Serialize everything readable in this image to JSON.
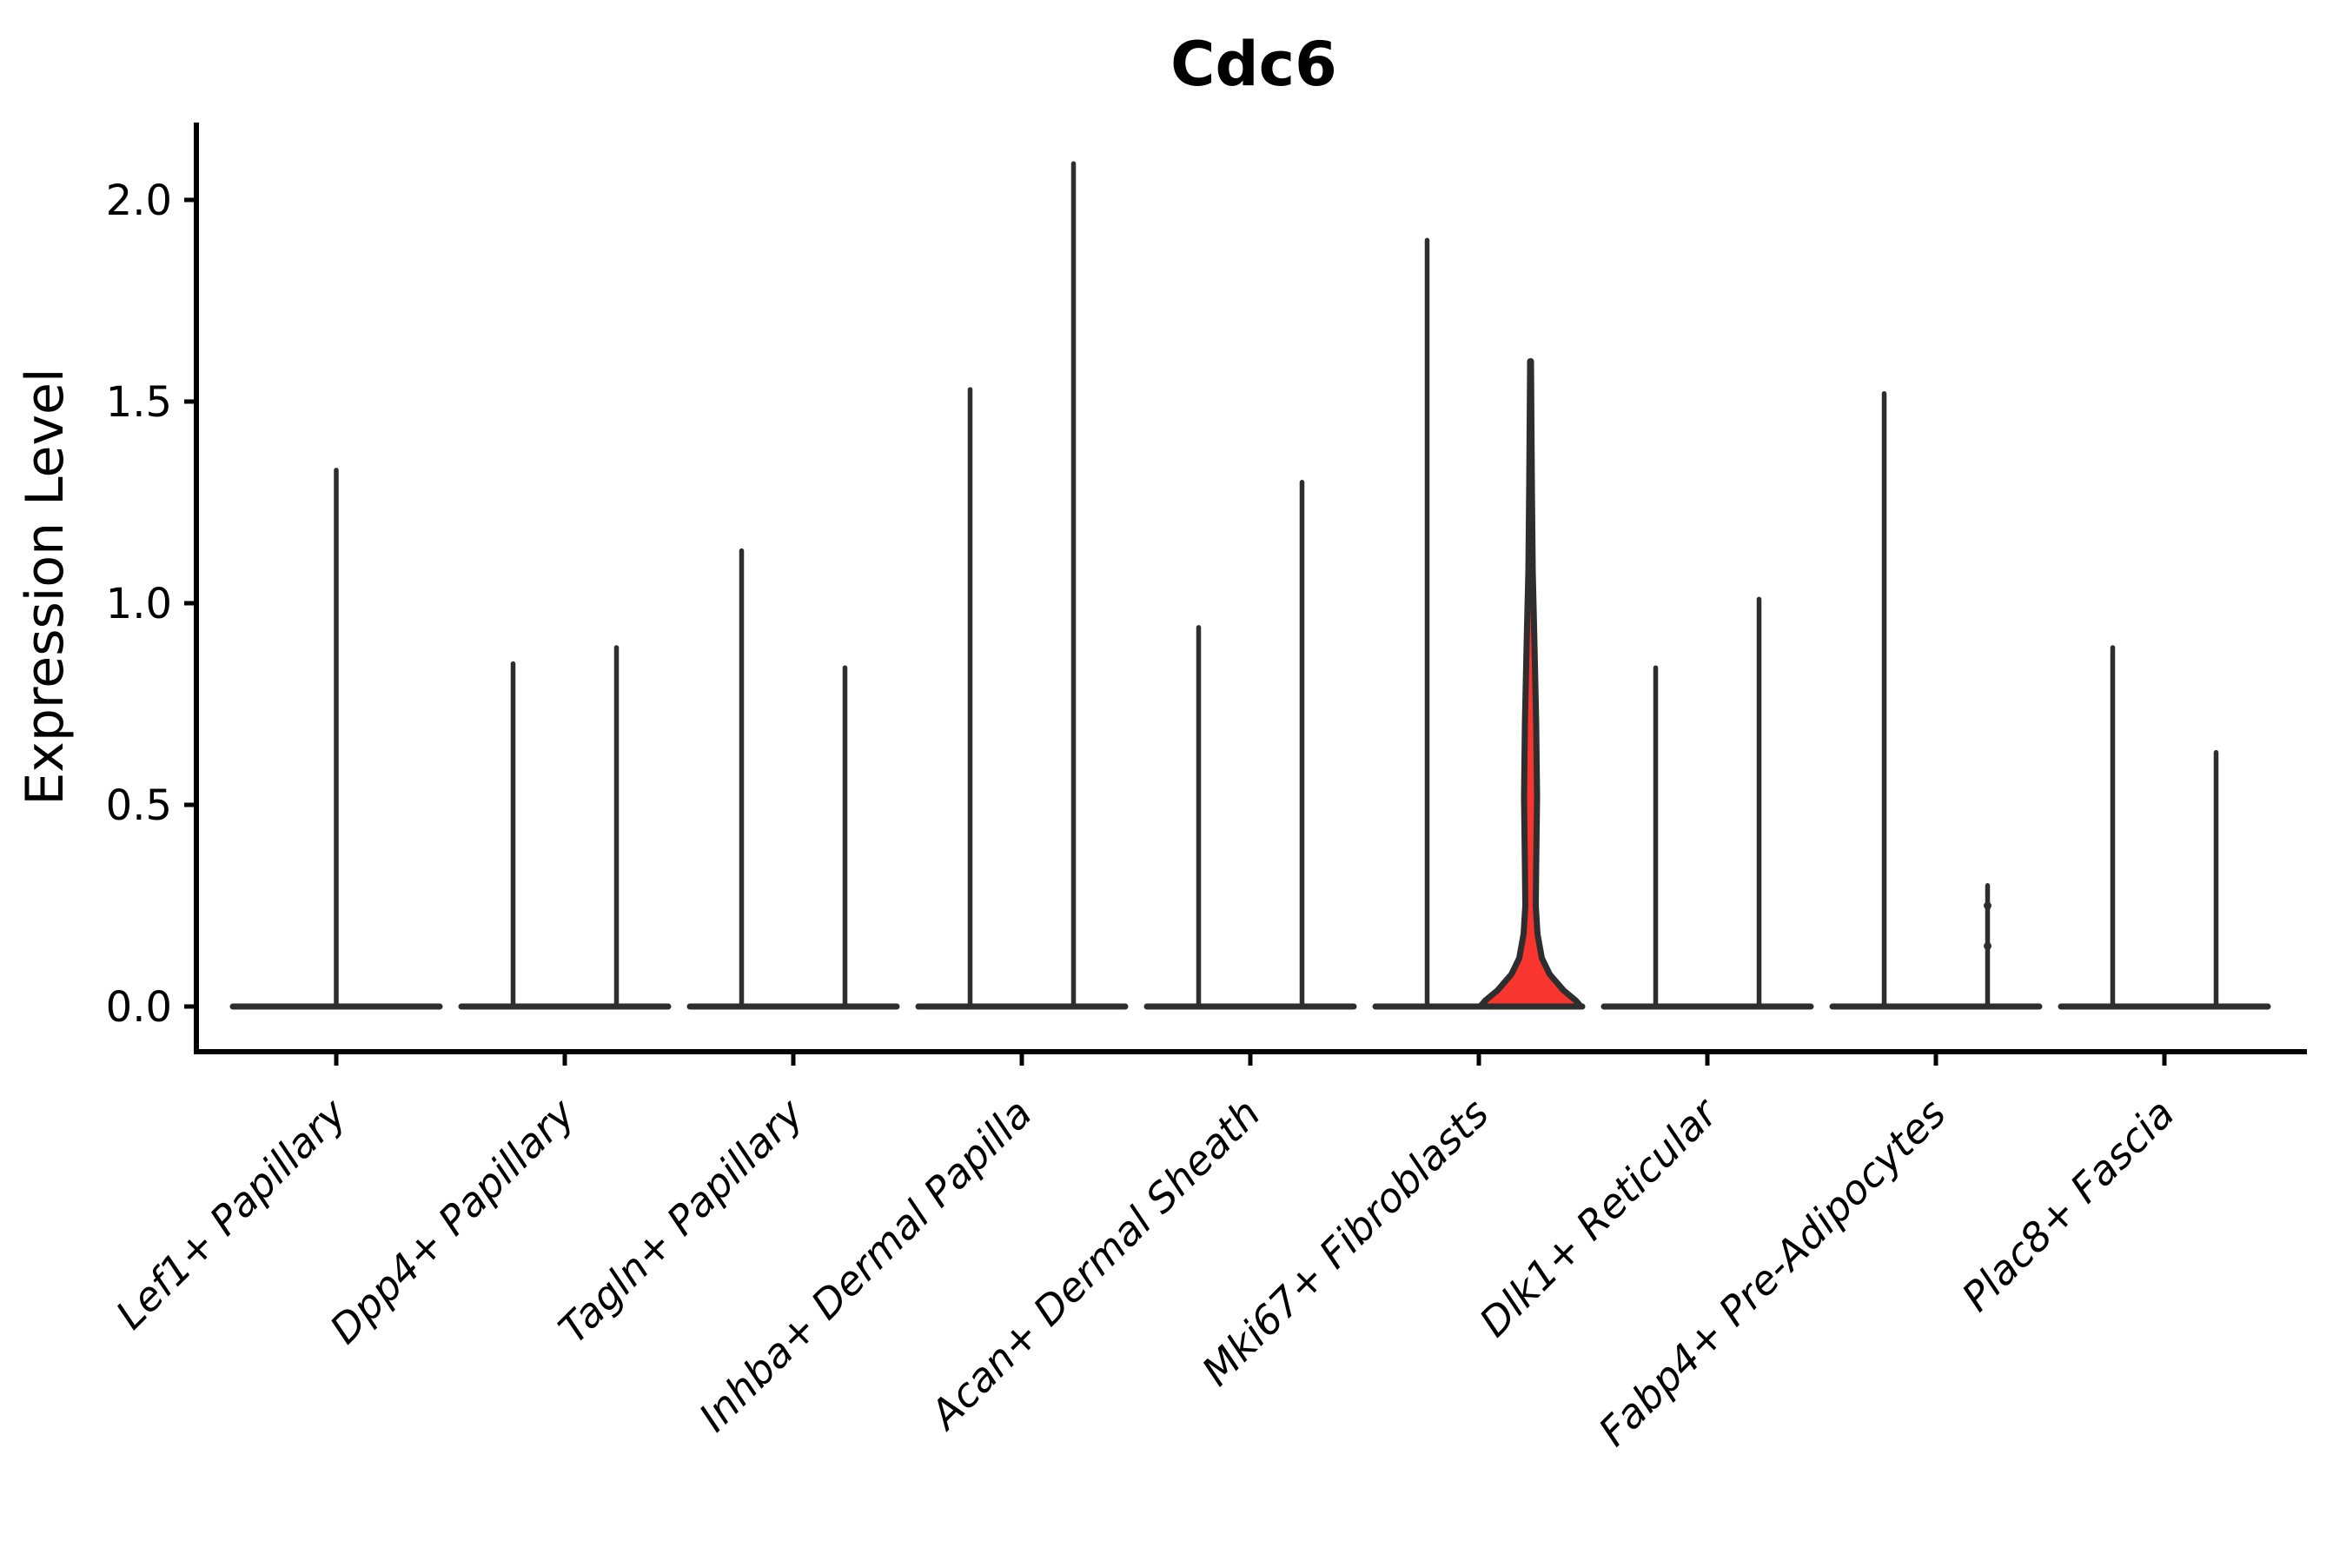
{
  "figure": {
    "title": "Cdc6",
    "ylabel": "Expression Level"
  },
  "chart_data": {
    "type": "violin",
    "title": "Cdc6",
    "xlabel": "",
    "ylabel": "Expression Level",
    "ylim": [
      0,
      2.19
    ],
    "yticks": [
      0.0,
      0.5,
      1.0,
      1.5,
      2.0
    ],
    "ytick_labels": [
      "0.0",
      "0.5",
      "1.0",
      "1.5",
      "2.0"
    ],
    "grid": false,
    "legend": "none",
    "categories": [
      "Lef1+ Papillary",
      "Dpp4+ Papillary",
      "Tagln+ Papillary",
      "Inhba+ Dermal Papilla",
      "Acan+ Dermal Sheath",
      "Mki67+ Fibroblasts",
      "Dlk1+ Reticular",
      "Fabp4+ Pre-Adipocytes",
      "Plac8+ Fascia"
    ],
    "violins": [
      {
        "category_index": 0,
        "offset": 0,
        "max": 1.33,
        "filled": false
      },
      {
        "category_index": 1,
        "offset": -1,
        "max": 0.85,
        "filled": false
      },
      {
        "category_index": 1,
        "offset": 1,
        "max": 0.89,
        "filled": false
      },
      {
        "category_index": 2,
        "offset": -1,
        "max": 1.13,
        "filled": false
      },
      {
        "category_index": 2,
        "offset": 1,
        "max": 0.84,
        "filled": false
      },
      {
        "category_index": 3,
        "offset": -1,
        "max": 1.53,
        "filled": false
      },
      {
        "category_index": 3,
        "offset": 1,
        "max": 2.09,
        "filled": false
      },
      {
        "category_index": 4,
        "offset": -1,
        "max": 0.94,
        "filled": false
      },
      {
        "category_index": 4,
        "offset": 1,
        "max": 1.3,
        "filled": false
      },
      {
        "category_index": 5,
        "offset": -1,
        "max": 1.9,
        "filled": false
      },
      {
        "category_index": 5,
        "offset": 1,
        "max": 1.6,
        "filled": true,
        "fill_color": "#f8352e",
        "profile": [
          [
            1.6,
            0.5
          ],
          [
            1.45,
            1.0
          ],
          [
            1.3,
            1.5
          ],
          [
            1.08,
            2.5
          ],
          [
            0.9,
            4.5
          ],
          [
            0.7,
            6.5
          ],
          [
            0.52,
            7.5
          ],
          [
            0.35,
            6.5
          ],
          [
            0.25,
            6.0
          ],
          [
            0.18,
            8.0
          ],
          [
            0.12,
            13.0
          ],
          [
            0.08,
            22.0
          ],
          [
            0.04,
            38.0
          ],
          [
            0.015,
            52.0
          ],
          [
            0.0,
            58.0
          ]
        ]
      },
      {
        "category_index": 6,
        "offset": -1,
        "max": 0.84,
        "filled": false
      },
      {
        "category_index": 6,
        "offset": 1,
        "max": 1.01,
        "filled": false
      },
      {
        "category_index": 7,
        "offset": -1,
        "max": 1.52,
        "filled": false
      },
      {
        "category_index": 7,
        "offset": 1,
        "max": 0.3,
        "filled": false,
        "bumps": [
          0.25,
          0.15
        ]
      },
      {
        "category_index": 8,
        "offset": -1,
        "max": 0.89,
        "filled": false
      },
      {
        "category_index": 8,
        "offset": 1,
        "max": 0.63,
        "filled": false
      }
    ],
    "colors": {
      "spine": "#000000",
      "violin_line": "#2e2e2e",
      "highlight_fill": "#f8352e",
      "background": "#ffffff"
    }
  }
}
